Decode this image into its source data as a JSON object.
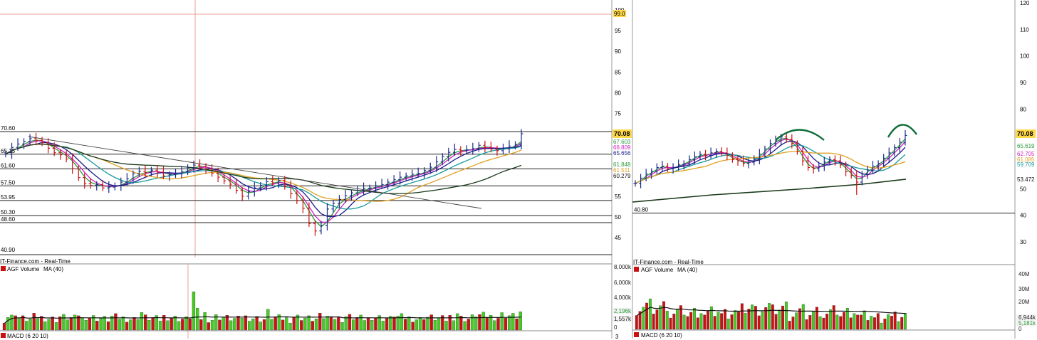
{
  "colors": {
    "bar_up": "#1a2a8a",
    "bar_down": "#cc1111",
    "ma_green": "#2a9a3a",
    "ma_magenta": "#d020c0",
    "ma_navy": "#1a1a8a",
    "ma_teal": "#1a9a9a",
    "ma_orange": "#e0a020",
    "ma_black": "#1a3a1a",
    "vol_up": "#44cc22",
    "vol_down": "#cc1111",
    "price_tag": "#ffd84a",
    "annotation": "#0f6e3a"
  },
  "panels": [
    {
      "id": "left",
      "source_label": "IT-Finance.com - Real-Time",
      "volume_label": "AGF Volume",
      "volume_ma_label": "MA (40)",
      "macd_label": "MACD (6 20 10)",
      "price_ticks": [
        "100",
        "95",
        "90",
        "85",
        "80",
        "75",
        "55",
        "50",
        "45"
      ],
      "volume_ticks": [
        "8,000k",
        "6,000k",
        "4,000k",
        "2,196k",
        "1,557k",
        "0"
      ],
      "macd_tick": "3",
      "top_marker": "99.0",
      "last_price": "70.08",
      "ma_tags": [
        "67.603",
        "66.809",
        "65.656",
        "61.848",
        "61.511",
        "60.279"
      ],
      "levels": [
        "70.60",
        "65.15",
        "61.60",
        "57.50",
        "53.95",
        "50.30",
        "48.60",
        "40.90"
      ]
    },
    {
      "id": "right",
      "source_label": "IT-Finance.com - Real-Time",
      "volume_label": "AGF Volume",
      "volume_ma_label": "MA (40)",
      "macd_label": "MACD (6 20 10)",
      "price_ticks": [
        "120",
        "110",
        "100",
        "90",
        "80",
        "50",
        "40",
        "30"
      ],
      "volume_ticks": [
        "40M",
        "30M",
        "20M",
        "6,944k",
        "5,181k",
        "0"
      ],
      "last_price": "70.08",
      "ma_tags": [
        "65.619",
        "62.705",
        "61.085",
        "59.709",
        "53.472"
      ],
      "levels": [
        "40.80"
      ]
    }
  ],
  "chart_data": [
    {
      "type": "line",
      "panel": "left",
      "series": [
        {
          "values": [
            65.2,
            66.8,
            67.6,
            68.2,
            68.9,
            68.5,
            67.9,
            66.6,
            65.5,
            65.0,
            64.0,
            61.6,
            59.5,
            58.0,
            57.6,
            57.8,
            57.0,
            57.2,
            57.5,
            58.4,
            59.2,
            60.4,
            61.0,
            60.7,
            61.3,
            60.8,
            59.9,
            60.2,
            60.5,
            60.9,
            61.9,
            62.5,
            62.2,
            61.6,
            60.5,
            59.6,
            58.7,
            57.9,
            56.4,
            55.0,
            56.1,
            57.0,
            57.6,
            58.5,
            58.2,
            58.8,
            57.4,
            55.6,
            53.9,
            52.1,
            48.4,
            46.6,
            47.9,
            51.9,
            53.3,
            54.2,
            55.1,
            55.8,
            56.4,
            56.9,
            57.0,
            57.5,
            57.8,
            58.4,
            59.0,
            59.6,
            59.9,
            60.3,
            60.5,
            61.2,
            62.0,
            63.3,
            64.6,
            65.6,
            66.3,
            66.0,
            66.2,
            66.5,
            67.3,
            66.8,
            66.4,
            66.0,
            66.6,
            67.1,
            67.5,
            70.08
          ]
        }
      ],
      "levels": [
        70.6,
        65.15,
        61.6,
        57.5,
        53.95,
        50.3,
        48.6,
        40.9
      ],
      "ylim": [
        40,
        100
      ]
    },
    {
      "type": "line",
      "panel": "right",
      "series": [
        {
          "values": [
            52.0,
            54.0,
            55.5,
            56.5,
            58.0,
            58.5,
            57.5,
            58.0,
            59.0,
            59.5,
            61.0,
            62.0,
            63.0,
            62.5,
            63.5,
            64.0,
            63.5,
            62.5,
            61.0,
            60.5,
            59.5,
            60.0,
            61.0,
            63.0,
            65.0,
            67.0,
            68.0,
            69.5,
            68.5,
            67.0,
            64.0,
            60.5,
            58.0,
            57.5,
            58.5,
            60.0,
            61.0,
            60.5,
            59.0,
            56.5,
            55.0,
            52.5,
            55.5,
            57.0,
            58.5,
            59.5,
            61.5,
            63.5,
            65.5,
            67.5,
            70.08
          ]
        }
      ],
      "levels": [
        40.8
      ],
      "ylim": [
        25,
        125
      ]
    }
  ]
}
